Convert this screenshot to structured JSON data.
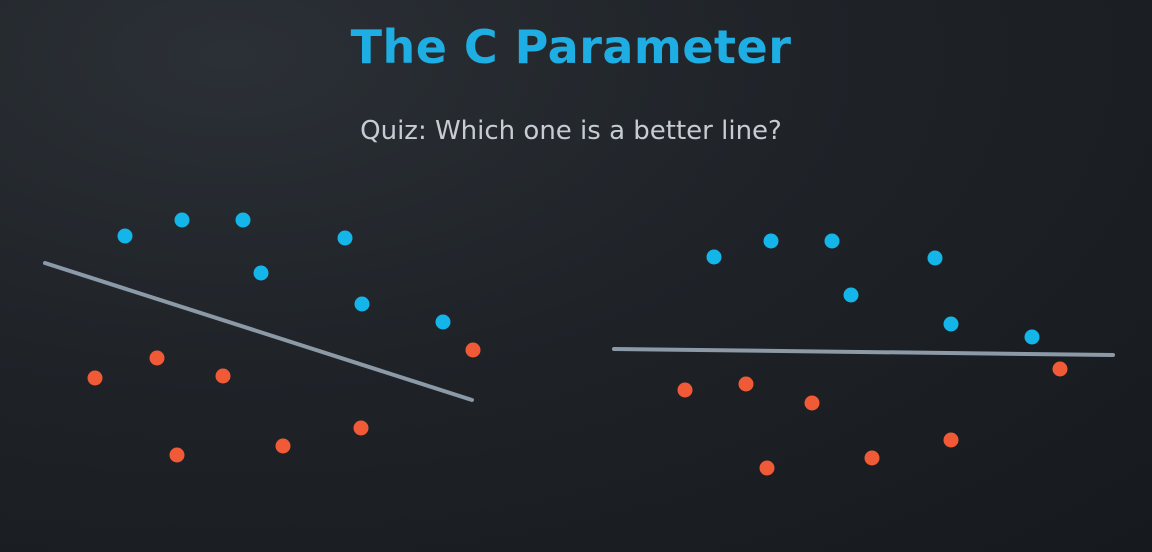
{
  "header": {
    "title": "The C Parameter",
    "subtitle": "Quiz: Which one is a better line?"
  },
  "colors": {
    "title": "#1eaee3",
    "subtitle": "#c6ccd3",
    "blue_point": "#14b5e8",
    "red_point": "#f15a37",
    "line": "#8c9aa8"
  }
}
